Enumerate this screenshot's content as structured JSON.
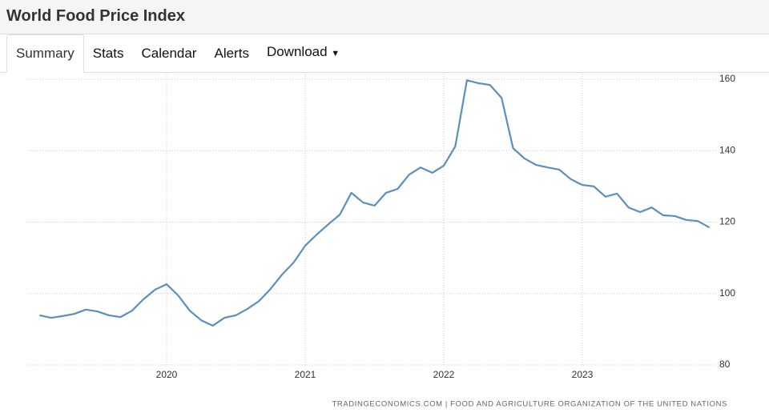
{
  "header": {
    "title": "World Food Price Index",
    "tabs": [
      "Summary",
      "Stats",
      "Calendar",
      "Alerts",
      "Download"
    ]
  },
  "chart_data": {
    "type": "line",
    "source": "TRADINGECONOMICS.COM | FOOD AND AGRICULTURE ORGANIZATION OF THE UNITED NATIONS",
    "x": [
      2019.083,
      2019.167,
      2019.25,
      2019.333,
      2019.417,
      2019.5,
      2019.583,
      2019.667,
      2019.75,
      2019.833,
      2019.917,
      2020,
      2020.083,
      2020.167,
      2020.25,
      2020.333,
      2020.417,
      2020.5,
      2020.583,
      2020.667,
      2020.75,
      2020.833,
      2020.917,
      2021,
      2021.083,
      2021.167,
      2021.25,
      2021.333,
      2021.417,
      2021.5,
      2021.583,
      2021.667,
      2021.75,
      2021.833,
      2021.917,
      2022,
      2022.083,
      2022.167,
      2022.25,
      2022.333,
      2022.417,
      2022.5,
      2022.583,
      2022.667,
      2022.75,
      2022.833,
      2022.917,
      2023,
      2023.083,
      2023.167,
      2023.25,
      2023.333,
      2023.417,
      2023.5,
      2023.583,
      2023.667,
      2023.75,
      2023.833,
      2023.917
    ],
    "series": [
      {
        "color": "#5b8fbe",
        "values": [
          93.9,
          93.2,
          93.7,
          94.3,
          95.5,
          95.0,
          93.9,
          93.4,
          95.2,
          98.4,
          101.1,
          102.6,
          99.5,
          95.2,
          92.5,
          91.0,
          93.2,
          93.9,
          95.7,
          97.9,
          101.3,
          105.3,
          108.7,
          113.4,
          116.5,
          119.4,
          122.1,
          128.2,
          125.5,
          124.6,
          128.2,
          129.3,
          133.3,
          135.3,
          133.8,
          135.8,
          141.2,
          159.7,
          158.9,
          158.4,
          154.8,
          140.7,
          137.8,
          136.0,
          135.3,
          134.7,
          132.0,
          130.4,
          130.0,
          127.1,
          128.0,
          124.1,
          122.8,
          124.1,
          121.9,
          121.7,
          120.6,
          120.3,
          118.5
        ]
      }
    ],
    "xlim": [
      2019,
      2024
    ],
    "xticks": [
      2020,
      2021,
      2022,
      2023
    ],
    "ylim": [
      80,
      160
    ],
    "yticks": [
      80,
      100,
      120,
      140,
      160
    ],
    "grid": true
  }
}
